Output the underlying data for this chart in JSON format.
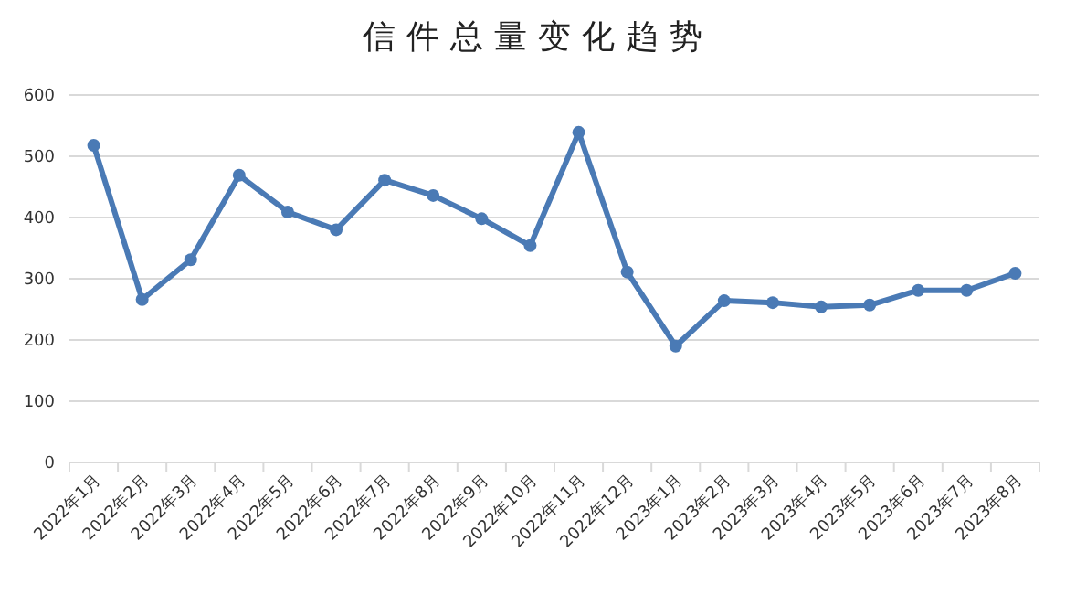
{
  "chart_data": {
    "type": "line",
    "title": "信件总量变化趋势",
    "categories": [
      "2022年1月",
      "2022年2月",
      "2022年3月",
      "2022年4月",
      "2022年5月",
      "2022年6月",
      "2022年7月",
      "2022年8月",
      "2022年9月",
      "2022年10月",
      "2022年11月",
      "2022年12月",
      "2023年1月",
      "2023年2月",
      "2023年3月",
      "2023年4月",
      "2023年5月",
      "2023年6月",
      "2023年7月",
      "2023年8月"
    ],
    "series": [
      {
        "color": "#4a7ab5",
        "values": [
          518,
          266,
          331,
          469,
          409,
          380,
          461,
          436,
          398,
          354,
          539,
          311,
          190,
          264,
          261,
          254,
          257,
          281,
          281,
          309
        ]
      }
    ],
    "ylim": [
      0,
      600
    ],
    "yticks": [
      0,
      100,
      200,
      300,
      400,
      500,
      600
    ],
    "grid": "y",
    "marker": "circle",
    "line_style": "solid"
  }
}
